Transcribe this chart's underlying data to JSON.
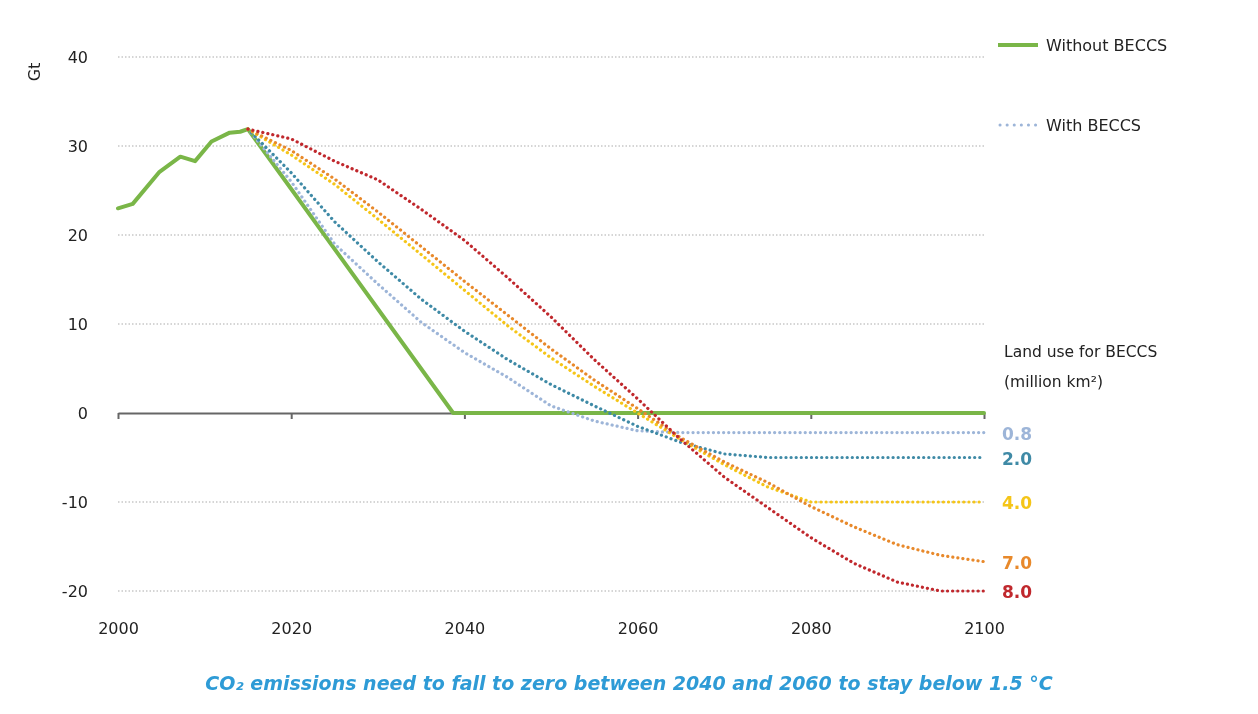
{
  "chart_data": {
    "type": "line",
    "title": "CO₂ emissions need to fall to zero between 2040 and 2060 to stay below 1.5 °C",
    "ylabel": "Gt",
    "legend_title": "Land use for BECCS (million km²)",
    "annotations": [
      "With BECCS"
    ],
    "xlim": [
      2000,
      2100
    ],
    "xticks": [
      2000,
      2020,
      2040,
      2060,
      2080,
      2100
    ],
    "ylim": [
      -20,
      40
    ],
    "yticks": [
      -20,
      -10,
      0,
      10,
      20,
      30,
      40
    ],
    "grid": "y",
    "legend": "top right",
    "marker": "none",
    "series": [
      {
        "name": "Without BECCS",
        "color": "#7ab648",
        "line_style": "solid",
        "x": [
          2000,
          2001.7,
          2004.8,
          2007.2,
          2008.9,
          2010.8,
          2012.9,
          2014.1,
          2015,
          2038.7,
          2100
        ],
        "values": [
          23,
          23.5,
          27.1,
          28.8,
          28.3,
          30.5,
          31.5,
          31.6,
          31.9,
          0,
          0
        ]
      },
      {
        "name": "0.8",
        "color": "#9db5d8",
        "line_style": "dotted",
        "x": [
          2015,
          2020,
          2025,
          2030,
          2035,
          2040,
          2045,
          2050,
          2055,
          2060,
          2065,
          2100
        ],
        "values": [
          31.9,
          26,
          19,
          14.5,
          10.2,
          6.8,
          4,
          0.8,
          -0.9,
          -2,
          -2.2,
          -2.2
        ]
      },
      {
        "name": "2.0",
        "color": "#3f8aa6",
        "line_style": "dotted",
        "x": [
          2015,
          2020,
          2025,
          2030,
          2035,
          2040,
          2045,
          2050,
          2055,
          2060,
          2065,
          2070,
          2075,
          2100
        ],
        "values": [
          31.9,
          27,
          21.5,
          17,
          12.8,
          9.2,
          6,
          3.2,
          0.8,
          -1.5,
          -3.3,
          -4.6,
          -5,
          -5
        ]
      },
      {
        "name": "4.0",
        "color": "#f5c518",
        "line_style": "dotted",
        "x": [
          2015,
          2020,
          2025,
          2030,
          2035,
          2040,
          2045,
          2050,
          2055,
          2060,
          2065,
          2070,
          2075,
          2080,
          2100
        ],
        "values": [
          31.9,
          29,
          25.7,
          21.8,
          17.8,
          13.8,
          9.8,
          6.2,
          3,
          0,
          -3,
          -5.8,
          -8.3,
          -10,
          -10
        ]
      },
      {
        "name": "7.0",
        "color": "#e8892b",
        "line_style": "dotted",
        "x": [
          2015,
          2020,
          2025,
          2030,
          2035,
          2040,
          2045,
          2050,
          2055,
          2060,
          2065,
          2070,
          2075,
          2080,
          2085,
          2090,
          2095,
          2100
        ],
        "values": [
          31.9,
          29.5,
          26.3,
          22.6,
          18.7,
          14.8,
          11,
          7.2,
          3.7,
          0.5,
          -2.8,
          -5.5,
          -7.8,
          -10.5,
          -12.8,
          -14.8,
          -16,
          -16.7
        ]
      },
      {
        "name": "8.0",
        "color": "#c0282d",
        "line_style": "dotted",
        "x": [
          2015,
          2020,
          2025,
          2030,
          2035,
          2040,
          2045,
          2050,
          2055,
          2060,
          2065,
          2070,
          2075,
          2080,
          2085,
          2090,
          2095,
          2100
        ],
        "values": [
          31.9,
          30.8,
          28.3,
          26.2,
          22.9,
          19.4,
          15.2,
          10.8,
          6,
          1.6,
          -3,
          -7.2,
          -10.6,
          -14,
          -16.9,
          -19,
          -20,
          -20
        ]
      }
    ]
  }
}
